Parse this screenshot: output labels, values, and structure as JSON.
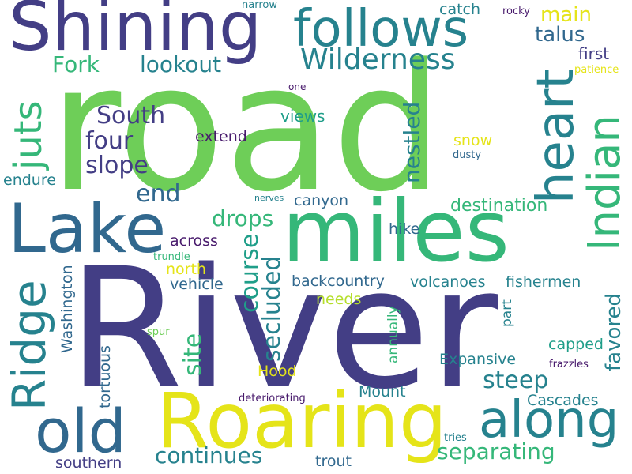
{
  "palette": {
    "dark_purple": "#433e85",
    "deep_purple": "#481a6c",
    "blue": "#31688e",
    "teal": "#26828e",
    "teal_green": "#1f9e89",
    "green": "#35b779",
    "light_green": "#6ece58",
    "lime": "#b5de2b",
    "yellow": "#e5e419",
    "background": "#ffffff"
  },
  "words": [
    {
      "text": "road",
      "color": "#6ece58"
    },
    {
      "text": "River",
      "color": "#433e85"
    },
    {
      "text": "miles",
      "color": "#35b779"
    },
    {
      "text": "Shining",
      "color": "#433e85"
    },
    {
      "text": "Lake",
      "color": "#31688e"
    },
    {
      "text": "follows",
      "color": "#26828e"
    },
    {
      "text": "Roaring",
      "color": "#e5e419"
    },
    {
      "text": "old",
      "color": "#31688e"
    },
    {
      "text": "along",
      "color": "#26828e"
    },
    {
      "text": "Wilderness",
      "color": "#26828e"
    },
    {
      "text": "Ridge",
      "color": "#26828e"
    },
    {
      "text": "juts",
      "color": "#35b779"
    },
    {
      "text": "heart",
      "color": "#26828e"
    },
    {
      "text": "Indian",
      "color": "#35b779"
    },
    {
      "text": "Fork",
      "color": "#35b779"
    },
    {
      "text": "lookout",
      "color": "#26828e"
    },
    {
      "text": "main",
      "color": "#e5e419"
    },
    {
      "text": "talus",
      "color": "#31688e"
    },
    {
      "text": "first",
      "color": "#433e85"
    },
    {
      "text": "South",
      "color": "#433e85"
    },
    {
      "text": "four",
      "color": "#433e85"
    },
    {
      "text": "slope",
      "color": "#433e85"
    },
    {
      "text": "end",
      "color": "#31688e"
    },
    {
      "text": "nestled",
      "color": "#26828e"
    },
    {
      "text": "secluded",
      "color": "#26828e"
    },
    {
      "text": "course",
      "color": "#1f9e89"
    },
    {
      "text": "site",
      "color": "#35b779"
    },
    {
      "text": "drops",
      "color": "#35b779"
    },
    {
      "text": "destination",
      "color": "#35b779"
    },
    {
      "text": "steep",
      "color": "#26828e"
    },
    {
      "text": "separating",
      "color": "#35b779"
    },
    {
      "text": "continues",
      "color": "#26828e"
    },
    {
      "text": "favored",
      "color": "#26828e"
    },
    {
      "text": "catch",
      "color": "#26828e"
    },
    {
      "text": "views",
      "color": "#1f9e89"
    },
    {
      "text": "extend",
      "color": "#481a6c"
    },
    {
      "text": "snow",
      "color": "#e5e419"
    },
    {
      "text": "endure",
      "color": "#26828e"
    },
    {
      "text": "canyon",
      "color": "#31688e"
    },
    {
      "text": "hike",
      "color": "#31688e"
    },
    {
      "text": "across",
      "color": "#481a6c"
    },
    {
      "text": "north",
      "color": "#e5e419"
    },
    {
      "text": "vehicle",
      "color": "#31688e"
    },
    {
      "text": "backcountry",
      "color": "#31688e"
    },
    {
      "text": "volcanoes",
      "color": "#26828e"
    },
    {
      "text": "fishermen",
      "color": "#26828e"
    },
    {
      "text": "needs",
      "color": "#b5de2b"
    },
    {
      "text": "Washington",
      "color": "#31688e"
    },
    {
      "text": "annually",
      "color": "#35b779"
    },
    {
      "text": "part",
      "color": "#26828e"
    },
    {
      "text": "capped",
      "color": "#1f9e89"
    },
    {
      "text": "Expansive",
      "color": "#26828e"
    },
    {
      "text": "Hood",
      "color": "#e5e419"
    },
    {
      "text": "Mount",
      "color": "#26828e"
    },
    {
      "text": "Cascades",
      "color": "#26828e"
    },
    {
      "text": "tortuous",
      "color": "#31688e"
    },
    {
      "text": "southern",
      "color": "#433e85"
    },
    {
      "text": "trout",
      "color": "#31688e"
    },
    {
      "text": "narrow",
      "color": "#26828e"
    },
    {
      "text": "rocky",
      "color": "#481a6c"
    },
    {
      "text": "patience",
      "color": "#e5e419"
    },
    {
      "text": "one",
      "color": "#481a6c"
    },
    {
      "text": "dusty",
      "color": "#31688e"
    },
    {
      "text": "nerves",
      "color": "#26828e"
    },
    {
      "text": "trundle",
      "color": "#35b779"
    },
    {
      "text": "spur",
      "color": "#6ece58"
    },
    {
      "text": "frazzles",
      "color": "#481a6c"
    },
    {
      "text": "deteriorating",
      "color": "#481a6c"
    },
    {
      "text": "tries",
      "color": "#26828e"
    }
  ]
}
